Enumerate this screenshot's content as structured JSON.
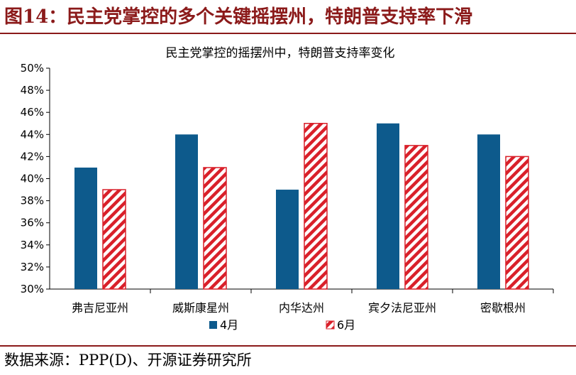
{
  "figure": {
    "title": "图14：民主党掌控的多个关键摇摆州，特朗普支持率下滑",
    "source": "数据来源：PPP(D)、开源证券研究所"
  },
  "chart_data": {
    "type": "bar",
    "title": "民主党掌控的摇摆州中，特朗普支持率变化",
    "categories": [
      "弗吉尼亚州",
      "威斯康星州",
      "内华达州",
      "宾夕法尼亚州",
      "密歇根州"
    ],
    "series": [
      {
        "name": "4月",
        "values": [
          41,
          44,
          39,
          45,
          44
        ],
        "color": "#0d5a8c",
        "pattern": "solid"
      },
      {
        "name": "6月",
        "values": [
          39,
          41,
          45,
          43,
          42
        ],
        "color": "#d9202a",
        "pattern": "diagonal-stripes"
      }
    ],
    "ylim": [
      30,
      50
    ],
    "yticks": [
      30,
      32,
      34,
      36,
      38,
      40,
      42,
      44,
      46,
      48,
      50
    ],
    "ytick_format": "%",
    "xlabel": "",
    "ylabel": "",
    "grid": false,
    "legend_position": "bottom"
  }
}
